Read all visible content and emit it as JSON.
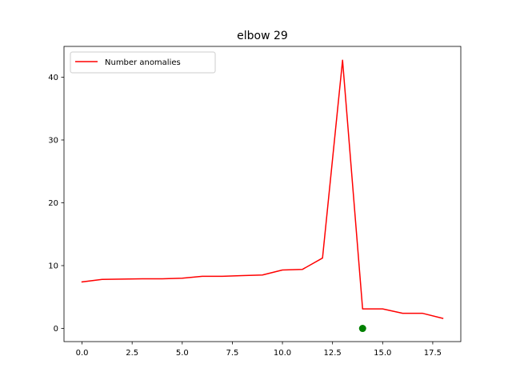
{
  "chart_data": {
    "type": "line",
    "title": "elbow 29",
    "xlabel": "",
    "ylabel": "",
    "xlim": [
      -0.9,
      18.9
    ],
    "ylim": [
      -2.1,
      44.9
    ],
    "xticks": [
      0.0,
      2.5,
      5.0,
      7.5,
      10.0,
      12.5,
      15.0,
      17.5
    ],
    "xtick_labels": [
      "0.0",
      "2.5",
      "5.0",
      "7.5",
      "10.0",
      "12.5",
      "15.0",
      "17.5"
    ],
    "yticks": [
      0,
      10,
      20,
      30,
      40
    ],
    "ytick_labels": [
      "0",
      "10",
      "20",
      "30",
      "40"
    ],
    "grid": false,
    "legend": {
      "position": "top-left",
      "entries": [
        "Number anomalies"
      ]
    },
    "series": [
      {
        "name": "Number anomalies",
        "color": "#ff0000",
        "x": [
          0,
          1,
          2,
          3,
          4,
          5,
          6,
          7,
          8,
          9,
          10,
          11,
          12,
          13,
          14,
          15,
          16,
          17,
          18
        ],
        "y": [
          7.4,
          7.8,
          7.85,
          7.9,
          7.9,
          8.0,
          8.3,
          8.3,
          8.4,
          8.5,
          9.3,
          9.4,
          11.2,
          42.7,
          3.1,
          3.1,
          2.4,
          2.4,
          1.6
        ]
      }
    ],
    "markers": [
      {
        "x": 14,
        "y": 0,
        "color": "#008000"
      }
    ]
  }
}
